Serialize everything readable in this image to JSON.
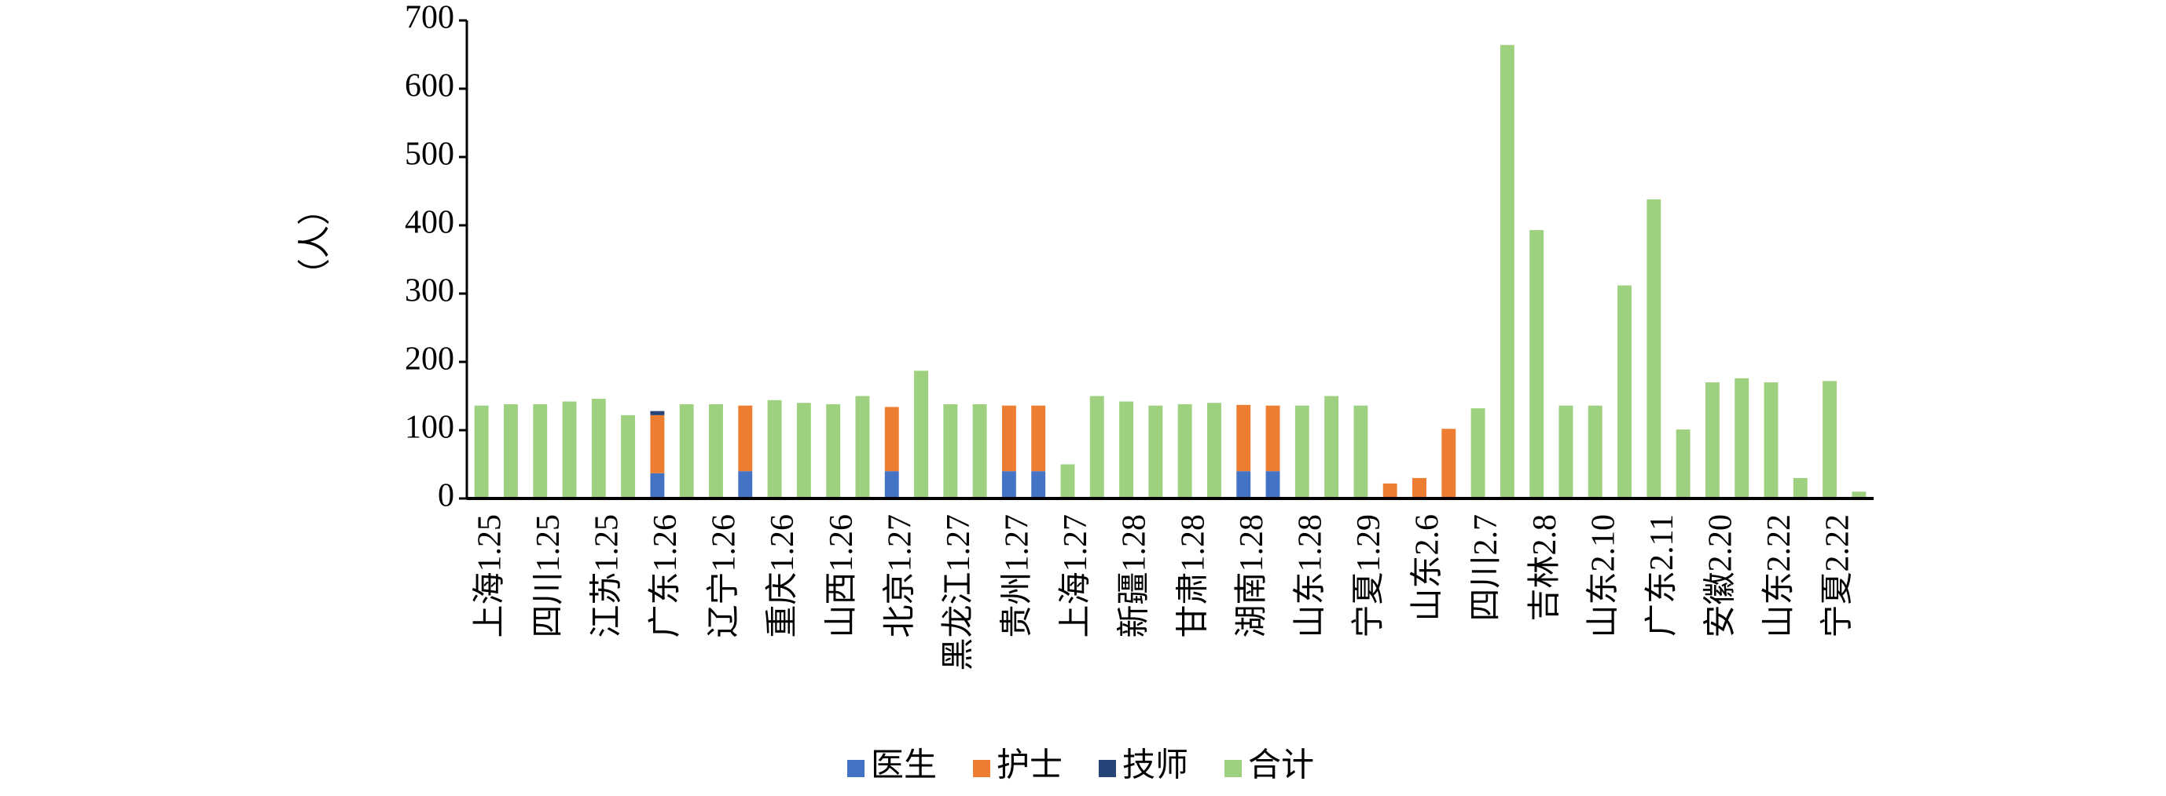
{
  "chart_data": {
    "type": "stacked_bar",
    "y_label": "（人）",
    "categories": [
      "上海1.25",
      null,
      "四川1.25",
      null,
      "江苏1.25",
      null,
      "广东1.26",
      null,
      "辽宁1.26",
      null,
      "重庆1.26",
      null,
      "山西1.26",
      null,
      "北京1.27",
      null,
      "黑龙江1.27",
      null,
      "贵州1.27",
      null,
      "上海1.27",
      null,
      "新疆1.28",
      null,
      "甘肃1.28",
      null,
      "湖南1.28",
      null,
      "山东1.28",
      null,
      "宁夏1.29",
      null,
      "山东2.6",
      null,
      "四川2.7",
      null,
      "吉林2.8",
      null,
      "山东2.10",
      null,
      "广东2.11",
      null,
      "安徽2.20",
      null,
      "山东2.22",
      null,
      "宁夏2.22",
      null
    ],
    "series": [
      {
        "name": "医生",
        "color": "#4472c4",
        "values": [
          null,
          null,
          null,
          null,
          null,
          null,
          37,
          null,
          null,
          40,
          null,
          null,
          null,
          null,
          40,
          null,
          null,
          null,
          40,
          40,
          null,
          null,
          null,
          null,
          null,
          null,
          40,
          40,
          null,
          null,
          null,
          null,
          null,
          null,
          null,
          null,
          null,
          null,
          null,
          null,
          null,
          null,
          null,
          null,
          null,
          null,
          null,
          null
        ]
      },
      {
        "name": "护士",
        "color": "#ed7d31",
        "values": [
          null,
          null,
          null,
          null,
          null,
          null,
          85,
          null,
          null,
          96,
          null,
          null,
          null,
          null,
          94,
          null,
          null,
          null,
          96,
          96,
          null,
          null,
          null,
          null,
          null,
          null,
          97,
          96,
          null,
          null,
          null,
          22,
          30,
          102,
          null,
          null,
          null,
          null,
          null,
          null,
          null,
          null,
          null,
          null,
          null,
          null,
          null,
          null
        ]
      },
      {
        "name": "技师",
        "color": "#264478",
        "values": [
          null,
          null,
          null,
          null,
          null,
          null,
          6,
          null,
          null,
          null,
          null,
          null,
          null,
          null,
          null,
          null,
          null,
          null,
          null,
          null,
          null,
          null,
          null,
          null,
          null,
          null,
          null,
          null,
          null,
          null,
          null,
          null,
          null,
          null,
          null,
          null,
          null,
          null,
          null,
          null,
          null,
          null,
          null,
          null,
          null,
          null,
          null,
          null
        ]
      },
      {
        "name": "合计",
        "color": "#9dd17f",
        "values": [
          136,
          138,
          138,
          142,
          146,
          122,
          null,
          138,
          138,
          null,
          144,
          140,
          138,
          150,
          null,
          187,
          138,
          138,
          null,
          null,
          50,
          150,
          142,
          136,
          138,
          140,
          null,
          null,
          136,
          150,
          136,
          null,
          null,
          null,
          132,
          664,
          393,
          136,
          136,
          312,
          438,
          101,
          170,
          176,
          170,
          30,
          172,
          10
        ]
      }
    ],
    "ylim": [
      0,
      700
    ],
    "yticks": [
      0,
      100,
      200,
      300,
      400,
      500,
      600,
      700
    ],
    "legend": "bottom"
  }
}
